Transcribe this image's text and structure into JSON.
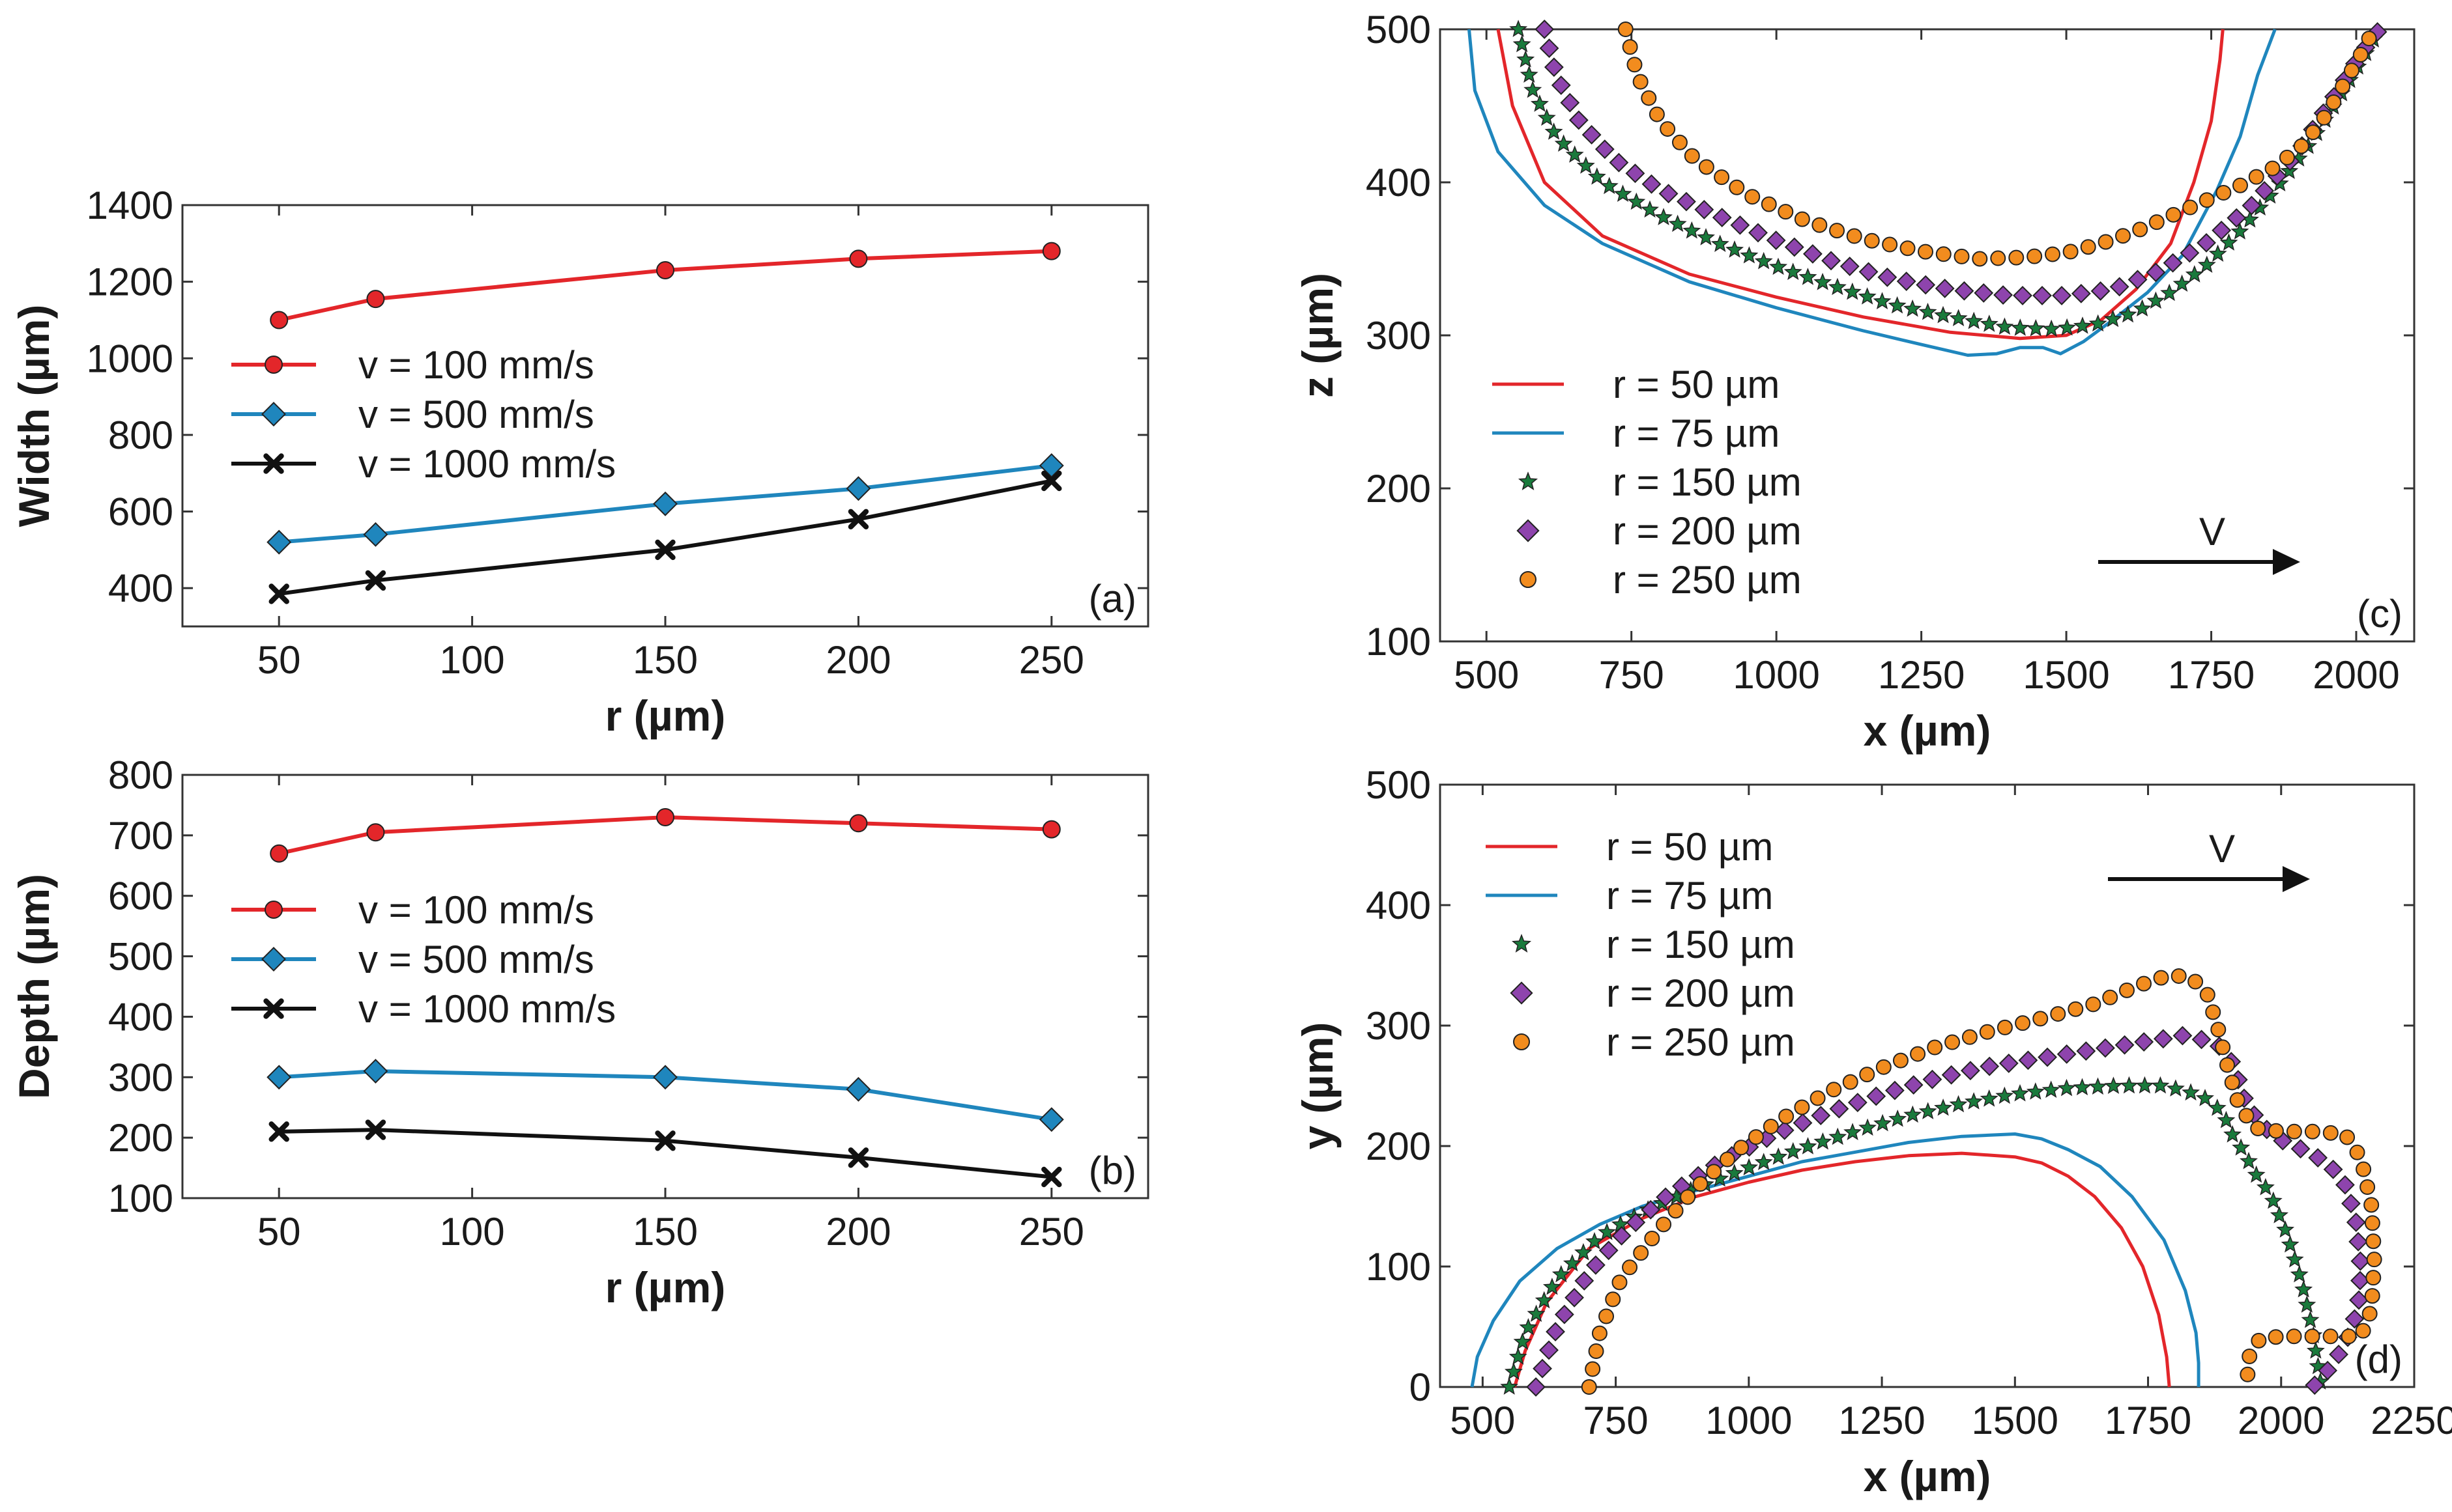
{
  "chart_data": [
    {
      "id": "a",
      "type": "line",
      "panel_label": "(a)",
      "xlabel": "r (µm)",
      "ylabel": "Width (µm)",
      "xlim": [
        25,
        275
      ],
      "ylim": [
        300,
        1400
      ],
      "xticks": [
        "50",
        "100",
        "150",
        "200",
        "250"
      ],
      "yticks": [
        "400",
        "600",
        "800",
        "1000",
        "1200",
        "1400"
      ],
      "legend_position": "middle-left",
      "series": [
        {
          "name": "v = 100 mm/s",
          "color": "#e3262a",
          "marker": "circle",
          "x": [
            50,
            75,
            150,
            200,
            250
          ],
          "y": [
            1100,
            1155,
            1230,
            1260,
            1280
          ]
        },
        {
          "name": "v = 500 mm/s",
          "color": "#1f86bd",
          "marker": "diamond",
          "x": [
            50,
            75,
            150,
            200,
            250
          ],
          "y": [
            520,
            540,
            620,
            660,
            720
          ]
        },
        {
          "name": "v = 1000 mm/s",
          "color": "#111111",
          "marker": "x",
          "x": [
            50,
            75,
            150,
            200,
            250
          ],
          "y": [
            385,
            420,
            500,
            580,
            680
          ]
        }
      ]
    },
    {
      "id": "b",
      "type": "line",
      "panel_label": "(b)",
      "xlabel": "r (µm)",
      "ylabel": "Depth (µm)",
      "xlim": [
        25,
        275
      ],
      "ylim": [
        100,
        800
      ],
      "xticks": [
        "50",
        "100",
        "150",
        "200",
        "250"
      ],
      "yticks": [
        "100",
        "200",
        "300",
        "400",
        "500",
        "600",
        "700",
        "800"
      ],
      "legend_position": "middle-left",
      "series": [
        {
          "name": "v = 100 mm/s",
          "color": "#e3262a",
          "marker": "circle",
          "x": [
            50,
            75,
            150,
            200,
            250
          ],
          "y": [
            670,
            705,
            730,
            720,
            710
          ]
        },
        {
          "name": "v = 500 mm/s",
          "color": "#1f86bd",
          "marker": "diamond",
          "x": [
            50,
            75,
            150,
            200,
            250
          ],
          "y": [
            300,
            310,
            300,
            280,
            230
          ]
        },
        {
          "name": "v = 1000 mm/s",
          "color": "#111111",
          "marker": "x",
          "x": [
            50,
            75,
            150,
            200,
            250
          ],
          "y": [
            210,
            213,
            195,
            167,
            135
          ]
        }
      ]
    },
    {
      "id": "c",
      "type": "line",
      "panel_label": "(c)",
      "xlabel": "x (µm)",
      "ylabel": "z (µm)",
      "xlim": [
        420,
        2100
      ],
      "ylim": [
        100,
        500
      ],
      "xticks": [
        "500",
        "750",
        "1000",
        "1250",
        "1500",
        "1750",
        "2000"
      ],
      "yticks": [
        "100",
        "200",
        "300",
        "400",
        "500"
      ],
      "legend_position": "lower-left",
      "annotation": "V",
      "series": [
        {
          "name": "r = 50 µm",
          "color": "#e3262a",
          "marker": "none",
          "x": [
            520,
            545,
            600,
            700,
            850,
            1000,
            1150,
            1300,
            1420,
            1500,
            1560,
            1620,
            1680,
            1720,
            1750,
            1765,
            1770
          ],
          "y": [
            500,
            450,
            400,
            365,
            340,
            325,
            312,
            302,
            298,
            300,
            310,
            330,
            360,
            400,
            440,
            480,
            500
          ]
        },
        {
          "name": "r = 75 µm",
          "color": "#1f86bd",
          "marker": "none",
          "x": [
            470,
            480,
            520,
            600,
            700,
            850,
            1000,
            1150,
            1250,
            1330,
            1380,
            1420,
            1460,
            1490,
            1530,
            1580,
            1640,
            1700,
            1760,
            1800,
            1830,
            1860
          ],
          "y": [
            500,
            460,
            420,
            385,
            360,
            335,
            318,
            303,
            294,
            287,
            288,
            292,
            292,
            288,
            296,
            310,
            328,
            352,
            395,
            430,
            470,
            500
          ]
        },
        {
          "name": "r = 150 µm",
          "color": "#1a7a3c",
          "marker": "star",
          "x": [
            555,
            580,
            620,
            700,
            800,
            900,
            1000,
            1100,
            1200,
            1300,
            1400,
            1480,
            1550,
            1620,
            1680,
            1740,
            1800,
            1860,
            1920,
            1970,
            2010,
            2040
          ],
          "y": [
            500,
            460,
            430,
            400,
            378,
            360,
            345,
            332,
            320,
            312,
            305,
            304,
            307,
            315,
            328,
            345,
            368,
            395,
            425,
            455,
            480,
            500
          ]
        },
        {
          "name": "r = 200 µm",
          "color": "#8e44ad",
          "marker": "diamond",
          "x": [
            600,
            620,
            660,
            720,
            800,
            900,
            1000,
            1100,
            1200,
            1300,
            1400,
            1500,
            1580,
            1660,
            1740,
            1820,
            1900,
            1960,
            2010,
            2040
          ],
          "y": [
            500,
            470,
            440,
            415,
            395,
            378,
            362,
            348,
            337,
            330,
            326,
            326,
            330,
            342,
            360,
            385,
            420,
            455,
            485,
            500
          ]
        },
        {
          "name": "r = 250 µm",
          "color": "#f28c1e",
          "marker": "circle",
          "x": [
            740,
            760,
            800,
            860,
            950,
            1050,
            1150,
            1250,
            1350,
            1430,
            1500,
            1560,
            1620,
            1680,
            1740,
            1800,
            1860,
            1910,
            1950,
            1980,
            2010,
            2030
          ],
          "y": [
            500,
            470,
            440,
            415,
            392,
            375,
            363,
            355,
            350,
            351,
            354,
            360,
            368,
            378,
            388,
            398,
            410,
            425,
            445,
            465,
            485,
            500
          ]
        }
      ]
    },
    {
      "id": "d",
      "type": "line",
      "panel_label": "(d)",
      "xlabel": "x (µm)",
      "ylabel": "y (µm)",
      "xlim": [
        420,
        2250
      ],
      "ylim": [
        0,
        500
      ],
      "xticks": [
        "500",
        "750",
        "1000",
        "1250",
        "1500",
        "1750",
        "2000",
        "2250"
      ],
      "yticks": [
        "0",
        "100",
        "200",
        "300",
        "400",
        "500"
      ],
      "legend_position": "upper-left",
      "annotation": "V",
      "series": [
        {
          "name": "r = 50 µm",
          "color": "#e3262a",
          "marker": "none",
          "x": [
            560,
            580,
            620,
            700,
            800,
            900,
            1000,
            1100,
            1200,
            1300,
            1400,
            1500,
            1550,
            1600,
            1650,
            1700,
            1740,
            1770,
            1785,
            1790
          ],
          "y": [
            0,
            30,
            70,
            115,
            140,
            158,
            170,
            180,
            187,
            192,
            194,
            191,
            186,
            175,
            158,
            132,
            100,
            60,
            25,
            0
          ]
        },
        {
          "name": "r = 75 µm",
          "color": "#1f86bd",
          "marker": "none",
          "x": [
            480,
            490,
            520,
            570,
            640,
            720,
            800,
            900,
            1000,
            1100,
            1200,
            1300,
            1400,
            1500,
            1550,
            1600,
            1660,
            1720,
            1780,
            1820,
            1840,
            1845,
            1845
          ],
          "y": [
            0,
            25,
            55,
            88,
            115,
            135,
            150,
            163,
            175,
            187,
            195,
            203,
            208,
            210,
            206,
            197,
            183,
            158,
            122,
            80,
            45,
            20,
            0
          ]
        },
        {
          "name": "r = 150 µm",
          "color": "#1a7a3c",
          "marker": "star",
          "x": [
            550,
            580,
            640,
            720,
            800,
            900,
            1000,
            1100,
            1200,
            1300,
            1400,
            1500,
            1600,
            1700,
            1780,
            1850,
            1890,
            1910,
            1930,
            1950,
            1980,
            2010,
            2040,
            2060,
            2070,
            2075
          ],
          "y": [
            0,
            45,
            90,
            125,
            145,
            165,
            182,
            198,
            212,
            225,
            235,
            243,
            248,
            250,
            250,
            242,
            228,
            208,
            195,
            178,
            160,
            128,
            85,
            45,
            15,
            0
          ]
        },
        {
          "name": "r = 200 µm",
          "color": "#8e44ad",
          "marker": "diamond",
          "x": [
            600,
            640,
            700,
            770,
            850,
            950,
            1050,
            1150,
            1250,
            1350,
            1450,
            1550,
            1650,
            1750,
            1820,
            1880,
            1910,
            1930,
            1960,
            2000,
            2050,
            2090,
            2120,
            2140,
            2150,
            2145,
            2120,
            2090,
            2070,
            2060
          ],
          "y": [
            0,
            50,
            95,
            130,
            160,
            188,
            210,
            228,
            243,
            256,
            266,
            273,
            280,
            287,
            292,
            285,
            268,
            240,
            218,
            205,
            195,
            185,
            168,
            140,
            100,
            65,
            35,
            15,
            5,
            0
          ]
        },
        {
          "name": "r = 250 µm",
          "color": "#f28c1e",
          "marker": "circle",
          "x": [
            700,
            720,
            760,
            830,
            900,
            980,
            1060,
            1150,
            1250,
            1350,
            1450,
            1550,
            1650,
            1730,
            1790,
            1830,
            1860,
            1880,
            1900,
            1920,
            1950,
            2000,
            2060,
            2120,
            2150,
            2170,
            2175,
            2170,
            2150,
            2110,
            2060,
            2000,
            1960,
            1940,
            1935
          ],
          "y": [
            0,
            45,
            90,
            130,
            165,
            197,
            222,
            245,
            265,
            282,
            295,
            306,
            318,
            333,
            342,
            340,
            328,
            300,
            265,
            235,
            215,
            212,
            212,
            210,
            190,
            150,
            105,
            65,
            42,
            42,
            42,
            42,
            40,
            25,
            0
          ]
        }
      ]
    }
  ]
}
